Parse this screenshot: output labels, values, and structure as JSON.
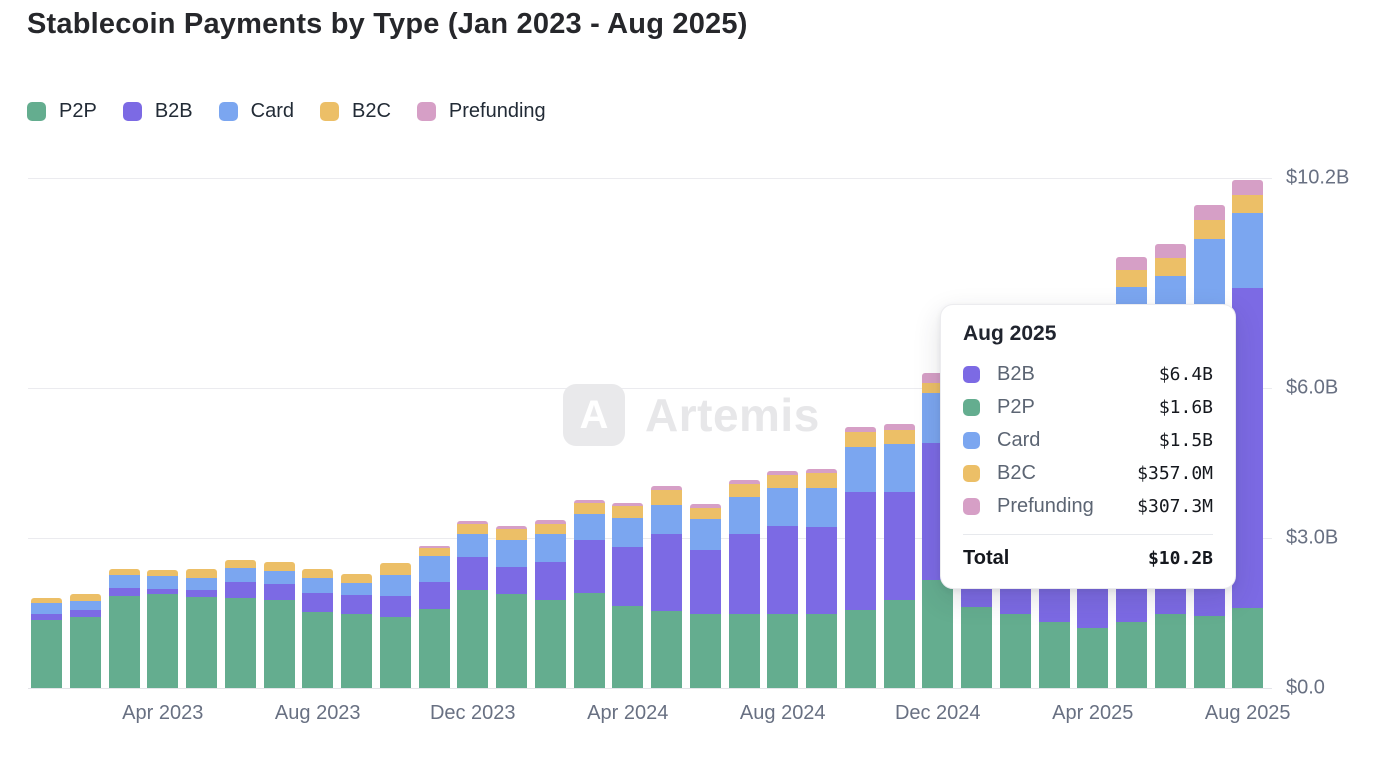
{
  "title": "Stablecoin Payments by Type (Jan 2023 - Aug 2025)",
  "watermark": {
    "text": "Artemis",
    "logo_glyph": "A"
  },
  "colors": {
    "p2p_green": "#64ad8f",
    "b2b_purple": "#7c6ae4",
    "card_blue": "#7ba6f0",
    "b2c_orange": "#ecbf67",
    "prefunding_pink": "#d69fc6",
    "axis_text": "#687082",
    "grid": "#ebebef",
    "title_text": "#26272b"
  },
  "legend": [
    {
      "label": "P2P",
      "color": "#64ad8f"
    },
    {
      "label": "B2B",
      "color": "#7c6ae4"
    },
    {
      "label": "Card",
      "color": "#7ba6f0"
    },
    {
      "label": "B2C",
      "color": "#ecbf67"
    },
    {
      "label": "Prefunding",
      "color": "#d69fc6"
    }
  ],
  "y_axis": {
    "ticks": [
      {
        "label": "$10.2B",
        "value": 10.2
      },
      {
        "label": "$6.0B",
        "value": 6.0
      },
      {
        "label": "$3.0B",
        "value": 3.0
      },
      {
        "label": "$0.0",
        "value": 0.0
      }
    ]
  },
  "x_axis": {
    "ticks": [
      {
        "label": "Apr 2023",
        "month_index": 3
      },
      {
        "label": "Aug 2023",
        "month_index": 7
      },
      {
        "label": "Dec 2023",
        "month_index": 11
      },
      {
        "label": "Apr 2024",
        "month_index": 15
      },
      {
        "label": "Aug 2024",
        "month_index": 19
      },
      {
        "label": "Dec 2024",
        "month_index": 23
      },
      {
        "label": "Apr 2025",
        "month_index": 27
      },
      {
        "label": "Aug 2025",
        "month_index": 31
      }
    ]
  },
  "tooltip": {
    "title": "Aug 2025",
    "rows": [
      {
        "series": "B2B",
        "color": "#7c6ae4",
        "value": "$6.4B"
      },
      {
        "series": "P2P",
        "color": "#64ad8f",
        "value": "$1.6B"
      },
      {
        "series": "Card",
        "color": "#7ba6f0",
        "value": "$1.5B"
      },
      {
        "series": "B2C",
        "color": "#ecbf67",
        "value": "$357.0M"
      },
      {
        "series": "Prefunding",
        "color": "#d69fc6",
        "value": "$307.3M"
      }
    ],
    "total_label": "Total",
    "total_value": "$10.2B"
  },
  "chart_data": {
    "type": "bar",
    "stacked": true,
    "title": "Stablecoin Payments by Type (Jan 2023 - Aug 2025)",
    "xlabel": "",
    "ylabel": "",
    "unit": "$B",
    "ylim": [
      0,
      10.2
    ],
    "grid": true,
    "legend_position": "top-left",
    "highlighted_category": "Aug 2025",
    "categories": [
      "Jan 2023",
      "Feb 2023",
      "Mar 2023",
      "Apr 2023",
      "May 2023",
      "Jun 2023",
      "Jul 2023",
      "Aug 2023",
      "Sep 2023",
      "Oct 2023",
      "Nov 2023",
      "Dec 2023",
      "Jan 2024",
      "Feb 2024",
      "Mar 2024",
      "Apr 2024",
      "May 2024",
      "Jun 2024",
      "Jul 2024",
      "Aug 2024",
      "Sep 2024",
      "Oct 2024",
      "Nov 2024",
      "Dec 2024",
      "Jan 2025",
      "Feb 2025",
      "Mar 2025",
      "Apr 2025",
      "May 2025",
      "Jun 2025",
      "Jul 2025",
      "Aug 2025"
    ],
    "series": [
      {
        "name": "P2P",
        "color": "#64ad8f",
        "values": [
          1.36,
          1.42,
          1.84,
          1.88,
          1.82,
          1.8,
          1.76,
          1.52,
          1.48,
          1.42,
          1.58,
          1.96,
          1.88,
          1.76,
          1.9,
          1.64,
          1.54,
          1.48,
          1.48,
          1.48,
          1.48,
          1.56,
          1.76,
          2.16,
          1.62,
          1.48,
          1.32,
          1.2,
          1.32,
          1.48,
          1.44,
          1.6
        ]
      },
      {
        "name": "B2B",
        "color": "#7c6ae4",
        "values": [
          0.12,
          0.14,
          0.16,
          0.1,
          0.14,
          0.32,
          0.32,
          0.38,
          0.38,
          0.42,
          0.54,
          0.66,
          0.54,
          0.76,
          1.06,
          1.18,
          1.54,
          1.28,
          1.6,
          1.76,
          1.74,
          2.36,
          2.16,
          2.74,
          2.9,
          3.4,
          3.9,
          4.4,
          5.55,
          5.56,
          6.14,
          6.4
        ]
      },
      {
        "name": "Card",
        "color": "#7ba6f0",
        "values": [
          0.22,
          0.18,
          0.26,
          0.26,
          0.24,
          0.28,
          0.26,
          0.3,
          0.24,
          0.42,
          0.52,
          0.46,
          0.54,
          0.56,
          0.52,
          0.58,
          0.58,
          0.62,
          0.74,
          0.76,
          0.78,
          0.9,
          0.96,
          1.0,
          1.05,
          1.1,
          1.15,
          1.2,
          1.15,
          1.2,
          1.4,
          1.5
        ]
      },
      {
        "name": "B2C",
        "color": "#ecbf67",
        "values": [
          0.1,
          0.14,
          0.12,
          0.12,
          0.18,
          0.16,
          0.18,
          0.18,
          0.18,
          0.24,
          0.16,
          0.2,
          0.22,
          0.2,
          0.22,
          0.24,
          0.3,
          0.22,
          0.26,
          0.26,
          0.3,
          0.3,
          0.28,
          0.2,
          0.28,
          0.3,
          0.31,
          0.33,
          0.34,
          0.36,
          0.38,
          0.357
        ]
      },
      {
        "name": "Prefunding",
        "color": "#d69fc6",
        "values": [
          0,
          0,
          0,
          0,
          0,
          0,
          0,
          0,
          0,
          0,
          0.04,
          0.06,
          0.06,
          0.08,
          0.06,
          0.06,
          0.08,
          0.08,
          0.08,
          0.08,
          0.08,
          0.1,
          0.12,
          0.2,
          0.15,
          0.17,
          0.2,
          0.22,
          0.26,
          0.28,
          0.3,
          0.3073
        ]
      }
    ]
  }
}
